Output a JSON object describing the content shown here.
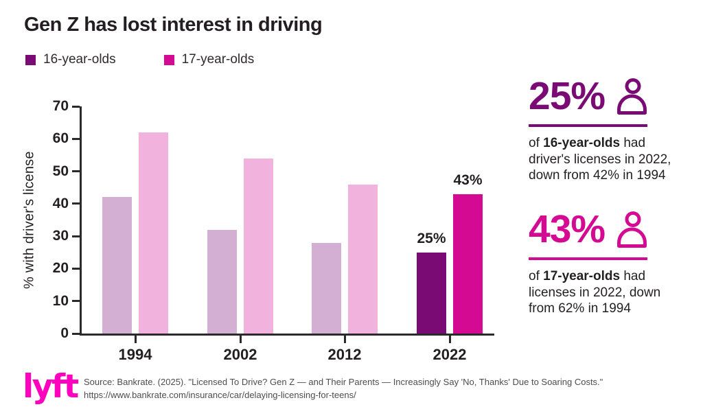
{
  "title": "Gen Z has lost interest in driving",
  "colors": {
    "purple": "#7A0A74",
    "magenta": "#D40A93",
    "purple_faded": "#D3AFD3",
    "magenta_faded": "#F1B2DE",
    "axis": "#2b292b",
    "lyft_pink": "#FF00BF"
  },
  "legend": [
    {
      "label": "16-year-olds",
      "color_key": "purple"
    },
    {
      "label": "17-year-olds",
      "color_key": "magenta"
    }
  ],
  "chart_data": {
    "type": "bar",
    "categories": [
      "1994",
      "2002",
      "2012",
      "2022"
    ],
    "series": [
      {
        "name": "16-year-olds",
        "values": [
          42,
          32,
          28,
          25
        ],
        "color": "#7A0A74",
        "color_faded": "#D3AFD3",
        "labels": [
          null,
          null,
          null,
          "25%"
        ]
      },
      {
        "name": "17-year-olds",
        "values": [
          62,
          54,
          46,
          43
        ],
        "color": "#D40A93",
        "color_faded": "#F1B2DE",
        "labels": [
          null,
          null,
          null,
          "43%"
        ]
      }
    ],
    "highlight_category": "2022",
    "title": "Gen Z has lost interest in driving",
    "xlabel": "",
    "ylabel": "% with driver's license",
    "ylim": [
      0,
      70
    ],
    "yticks": [
      0,
      10,
      20,
      30,
      40,
      50,
      60,
      70
    ],
    "grid": false,
    "legend_position": "top-left"
  },
  "callouts": [
    {
      "value": "25%",
      "icon": "person-icon",
      "color_key": "purple",
      "text_prefix": "of ",
      "bold_text": "16-year-olds",
      "text_suffix": " had driver's licenses in 2022, down from 42% in 1994"
    },
    {
      "value": "43%",
      "icon": "person-icon",
      "color_key": "magenta",
      "text_prefix": "of ",
      "bold_text": "17-year-olds",
      "text_suffix": " had licenses in 2022, down from 62% in 1994"
    }
  ],
  "footer": {
    "logo_text": "lyft",
    "source_line1": "Source: Bankrate. (2025). \"Licensed To Drive? Gen Z — and Their Parents — Increasingly Say 'No, Thanks' Due to Soaring Costs.\"",
    "source_line2": "https://www.bankrate.com/insurance/car/delaying-licensing-for-teens/"
  }
}
